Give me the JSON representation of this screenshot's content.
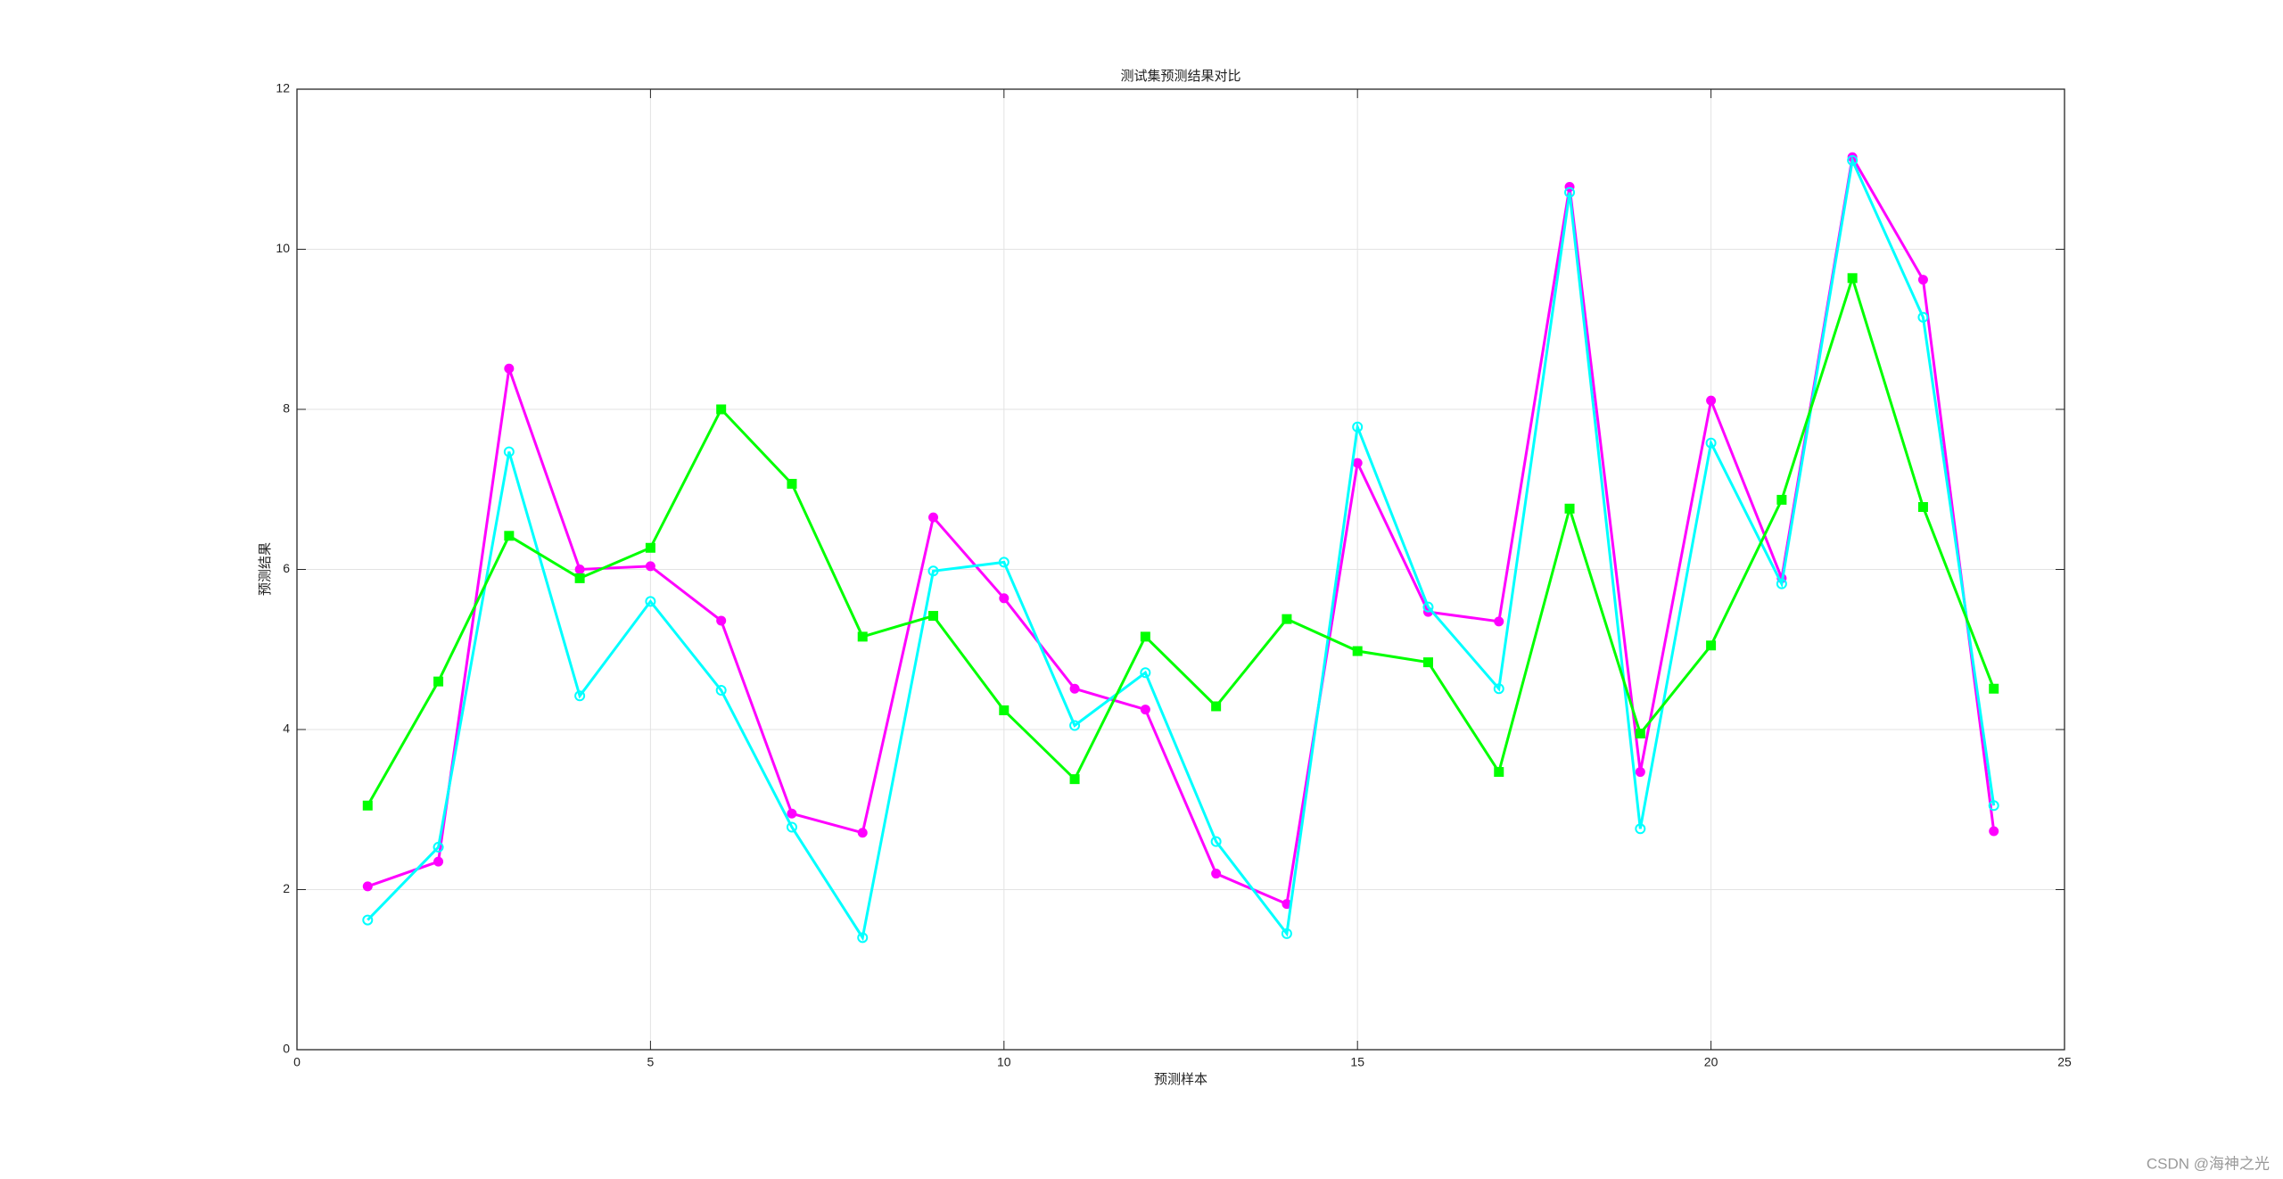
{
  "chart_data": {
    "type": "line",
    "title": "测试集预测结果对比",
    "xlabel": "预测样本",
    "ylabel": "预测结果",
    "x": [
      1,
      2,
      3,
      4,
      5,
      6,
      7,
      8,
      9,
      10,
      11,
      12,
      13,
      14,
      15,
      16,
      17,
      18,
      19,
      20,
      21,
      22,
      23,
      24
    ],
    "series": [
      {
        "color": "#ff00ff",
        "marker": "filled-circle",
        "values": [
          2.04,
          2.35,
          8.51,
          6.0,
          6.04,
          5.36,
          2.95,
          2.71,
          6.65,
          5.64,
          4.51,
          4.25,
          2.2,
          1.82,
          7.33,
          5.47,
          5.35,
          10.78,
          3.47,
          8.11,
          5.89,
          11.15,
          9.62,
          2.73
        ]
      },
      {
        "color": "#00ffff",
        "marker": "circle",
        "values": [
          1.62,
          2.53,
          7.47,
          4.42,
          5.6,
          4.49,
          2.78,
          1.4,
          5.98,
          6.09,
          4.05,
          4.71,
          2.6,
          1.45,
          7.78,
          5.53,
          4.51,
          10.71,
          2.76,
          7.58,
          5.82,
          11.11,
          9.15,
          3.05
        ]
      },
      {
        "color": "#00ff00",
        "marker": "square",
        "values": [
          3.05,
          4.6,
          6.42,
          5.89,
          6.27,
          8.0,
          7.07,
          5.16,
          5.42,
          4.24,
          3.38,
          5.16,
          4.29,
          5.38,
          4.98,
          4.84,
          3.47,
          6.76,
          3.95,
          5.05,
          6.87,
          9.64,
          6.78,
          4.51
        ]
      }
    ],
    "xlim": [
      0,
      25
    ],
    "xticks": [
      0,
      5,
      10,
      15,
      20,
      25
    ],
    "ylim": [
      0,
      12
    ],
    "yticks": [
      0,
      2,
      4,
      6,
      8,
      10,
      12
    ],
    "grid": true
  },
  "watermark": "CSDN @海神之光"
}
